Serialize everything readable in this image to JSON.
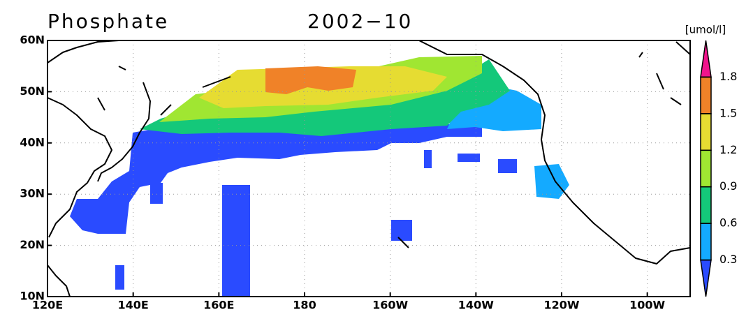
{
  "map": {
    "title": "Phosphate",
    "date": "2002−10",
    "units": "[umol/l]",
    "lonlim": [
      120,
      270
    ],
    "latlim": [
      10,
      60
    ],
    "lonticks": [
      {
        "value": 120,
        "label": "120E"
      },
      {
        "value": 140,
        "label": "140E"
      },
      {
        "value": 160,
        "label": "160E"
      },
      {
        "value": 180,
        "label": "180"
      },
      {
        "value": 200,
        "label": "160W"
      },
      {
        "value": 220,
        "label": "140W"
      },
      {
        "value": 240,
        "label": "120W"
      },
      {
        "value": 260,
        "label": "100W"
      }
    ],
    "latticks": [
      {
        "value": 10,
        "label": "10N"
      },
      {
        "value": 20,
        "label": "20N"
      },
      {
        "value": 30,
        "label": "30N"
      },
      {
        "value": 40,
        "label": "40N"
      },
      {
        "value": 50,
        "label": "50N"
      },
      {
        "value": 60,
        "label": "60N"
      }
    ],
    "colorbar": {
      "ticks": [
        0.3,
        0.6,
        0.9,
        1.2,
        1.5,
        1.8
      ],
      "colors": [
        "#2a4bff",
        "#14aaff",
        "#14c87a",
        "#a0e632",
        "#e6dc32",
        "#f08228",
        "#f0148c"
      ]
    }
  }
}
